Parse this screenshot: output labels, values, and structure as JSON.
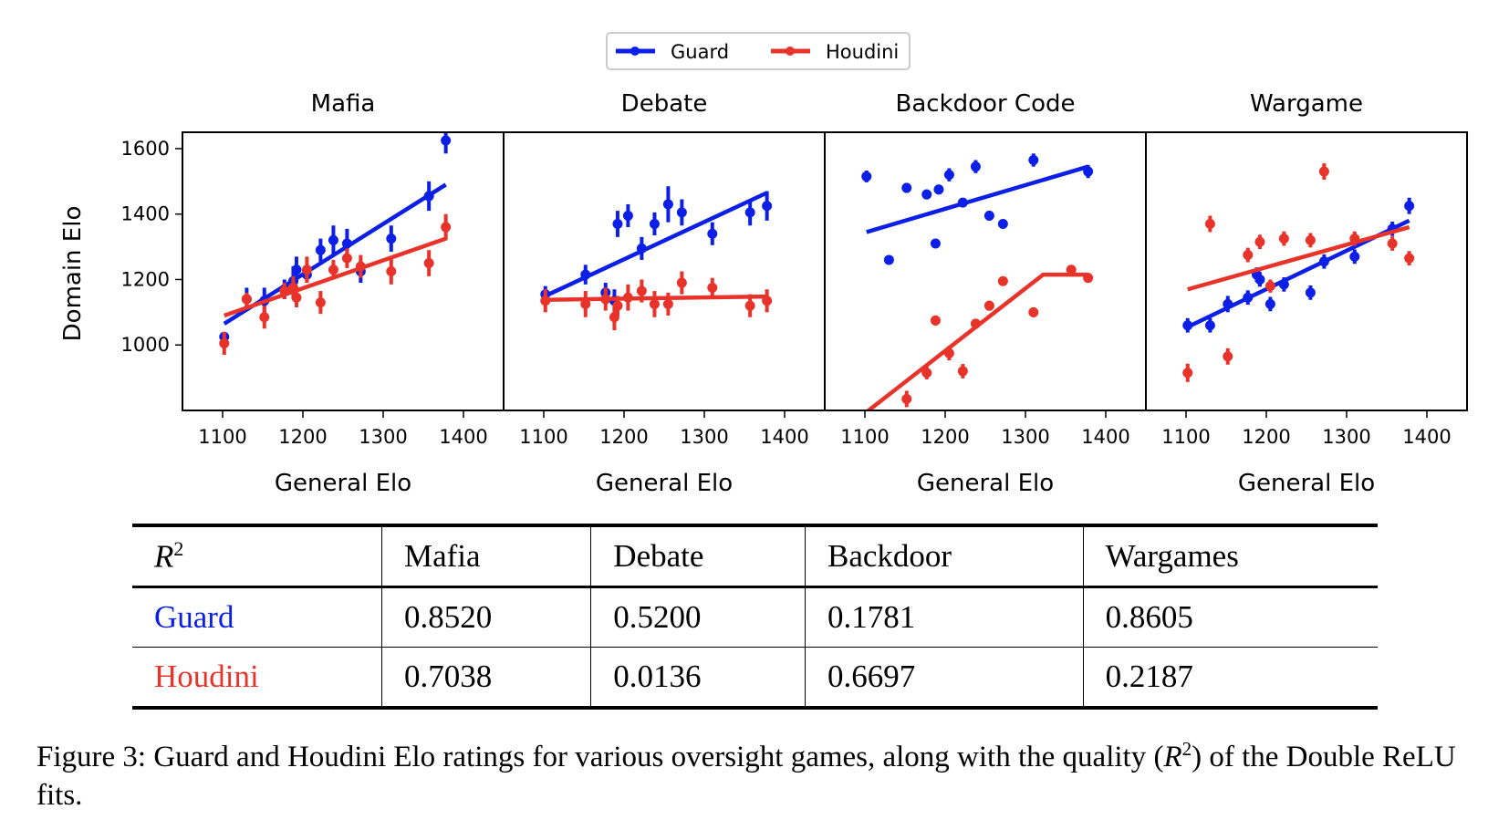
{
  "legend": {
    "guard_label": "Guard",
    "houdini_label": "Houdini"
  },
  "colors": {
    "guard": "#0b1fe6",
    "houdini": "#e8332a"
  },
  "axes": {
    "y_label": "Domain Elo",
    "x_label": "General Elo"
  },
  "chart_data": [
    {
      "type": "scatter",
      "title": "Mafia",
      "xlim": [
        1050,
        1450
      ],
      "ylim": [
        800,
        1650
      ],
      "xticks": [
        1100,
        1200,
        1300,
        1400
      ],
      "yticks": [
        1000,
        1200,
        1400,
        1600
      ],
      "series": [
        {
          "name": "Guard",
          "points": [
            [
              1102,
              1025,
              15
            ],
            [
              1130,
              1140,
              35
            ],
            [
              1152,
              1135,
              40
            ],
            [
              1177,
              1170,
              30
            ],
            [
              1188,
              1195,
              45
            ],
            [
              1192,
              1230,
              40
            ],
            [
              1205,
              1215,
              25
            ],
            [
              1222,
              1290,
              35
            ],
            [
              1238,
              1320,
              45
            ],
            [
              1255,
              1310,
              45
            ],
            [
              1272,
              1225,
              35
            ],
            [
              1310,
              1325,
              40
            ],
            [
              1357,
              1455,
              45
            ],
            [
              1378,
              1625,
              40
            ]
          ],
          "fit": [
            [
              1102,
              1065
            ],
            [
              1378,
              1490
            ]
          ]
        },
        {
          "name": "Houdini",
          "points": [
            [
              1102,
              1005,
              35
            ],
            [
              1130,
              1140,
              20
            ],
            [
              1152,
              1085,
              35
            ],
            [
              1177,
              1165,
              25
            ],
            [
              1188,
              1175,
              35
            ],
            [
              1192,
              1145,
              30
            ],
            [
              1205,
              1230,
              40
            ],
            [
              1222,
              1130,
              35
            ],
            [
              1238,
              1230,
              30
            ],
            [
              1255,
              1265,
              30
            ],
            [
              1272,
              1240,
              35
            ],
            [
              1310,
              1225,
              40
            ],
            [
              1357,
              1250,
              40
            ],
            [
              1378,
              1360,
              40
            ]
          ],
          "fit": [
            [
              1102,
              1090
            ],
            [
              1378,
              1325
            ]
          ]
        }
      ]
    },
    {
      "type": "scatter",
      "title": "Debate",
      "xlim": [
        1050,
        1450
      ],
      "ylim": [
        800,
        1650
      ],
      "xticks": [
        1100,
        1200,
        1300,
        1400
      ],
      "yticks": [
        1000,
        1200,
        1400,
        1600
      ],
      "series": [
        {
          "name": "Guard",
          "points": [
            [
              1102,
              1155,
              25
            ],
            [
              1152,
              1215,
              30
            ],
            [
              1177,
              1160,
              30
            ],
            [
              1188,
              1135,
              35
            ],
            [
              1192,
              1370,
              40
            ],
            [
              1205,
              1395,
              35
            ],
            [
              1222,
              1295,
              35
            ],
            [
              1238,
              1370,
              35
            ],
            [
              1255,
              1430,
              55
            ],
            [
              1272,
              1405,
              40
            ],
            [
              1310,
              1340,
              35
            ],
            [
              1357,
              1405,
              40
            ],
            [
              1378,
              1425,
              45
            ]
          ],
          "fit": [
            [
              1102,
              1150
            ],
            [
              1378,
              1465
            ]
          ]
        },
        {
          "name": "Houdini",
          "points": [
            [
              1102,
              1135,
              35
            ],
            [
              1152,
              1125,
              40
            ],
            [
              1177,
              1140,
              35
            ],
            [
              1188,
              1085,
              40
            ],
            [
              1192,
              1120,
              30
            ],
            [
              1205,
              1145,
              40
            ],
            [
              1222,
              1165,
              35
            ],
            [
              1238,
              1125,
              40
            ],
            [
              1255,
              1125,
              35
            ],
            [
              1272,
              1190,
              35
            ],
            [
              1310,
              1175,
              30
            ],
            [
              1357,
              1120,
              35
            ],
            [
              1378,
              1135,
              35
            ]
          ],
          "fit": [
            [
              1102,
              1138
            ],
            [
              1378,
              1148
            ]
          ]
        }
      ]
    },
    {
      "type": "scatter",
      "title": "Backdoor Code",
      "xlim": [
        1050,
        1450
      ],
      "ylim": [
        800,
        1650
      ],
      "xticks": [
        1100,
        1200,
        1300,
        1400
      ],
      "yticks": [
        1000,
        1200,
        1400,
        1600
      ],
      "series": [
        {
          "name": "Guard",
          "points": [
            [
              1102,
              1515,
              18
            ],
            [
              1130,
              1260,
              12
            ],
            [
              1152,
              1480,
              15
            ],
            [
              1177,
              1460,
              15
            ],
            [
              1188,
              1310,
              12
            ],
            [
              1192,
              1475,
              15
            ],
            [
              1205,
              1520,
              20
            ],
            [
              1222,
              1435,
              12
            ],
            [
              1238,
              1545,
              20
            ],
            [
              1255,
              1395,
              15
            ],
            [
              1272,
              1370,
              12
            ],
            [
              1310,
              1565,
              20
            ],
            [
              1378,
              1530,
              20
            ]
          ],
          "fit": [
            [
              1102,
              1345
            ],
            [
              1378,
              1545
            ]
          ]
        },
        {
          "name": "Houdini",
          "points": [
            [
              1152,
              835,
              25
            ],
            [
              1177,
              915,
              20
            ],
            [
              1188,
              1075,
              15
            ],
            [
              1205,
              975,
              22
            ],
            [
              1222,
              920,
              22
            ],
            [
              1238,
              1065,
              15
            ],
            [
              1255,
              1120,
              15
            ],
            [
              1272,
              1195,
              12
            ],
            [
              1310,
              1100,
              15
            ],
            [
              1357,
              1230,
              12
            ],
            [
              1378,
              1205,
              12
            ]
          ],
          "fit": [
            [
              1102,
              795
            ],
            [
              1322,
              1215
            ],
            [
              1378,
              1215
            ]
          ]
        }
      ]
    },
    {
      "type": "scatter",
      "title": "Wargame",
      "xlim": [
        1050,
        1450
      ],
      "ylim": [
        800,
        1650
      ],
      "xticks": [
        1100,
        1200,
        1300,
        1400
      ],
      "yticks": [
        1000,
        1200,
        1400,
        1600
      ],
      "series": [
        {
          "name": "Guard",
          "points": [
            [
              1102,
              1060,
              22
            ],
            [
              1130,
              1060,
              22
            ],
            [
              1152,
              1125,
              25
            ],
            [
              1177,
              1145,
              22
            ],
            [
              1188,
              1215,
              22
            ],
            [
              1192,
              1200,
              22
            ],
            [
              1205,
              1125,
              22
            ],
            [
              1222,
              1185,
              22
            ],
            [
              1255,
              1160,
              22
            ],
            [
              1272,
              1255,
              22
            ],
            [
              1310,
              1270,
              22
            ],
            [
              1357,
              1355,
              22
            ],
            [
              1378,
              1425,
              25
            ]
          ],
          "fit": [
            [
              1102,
              1055
            ],
            [
              1378,
              1380
            ]
          ]
        },
        {
          "name": "Houdini",
          "points": [
            [
              1102,
              915,
              28
            ],
            [
              1130,
              1370,
              25
            ],
            [
              1152,
              965,
              25
            ],
            [
              1177,
              1275,
              22
            ],
            [
              1192,
              1315,
              22
            ],
            [
              1205,
              1180,
              20
            ],
            [
              1222,
              1325,
              22
            ],
            [
              1255,
              1320,
              22
            ],
            [
              1272,
              1530,
              25
            ],
            [
              1310,
              1325,
              22
            ],
            [
              1357,
              1310,
              22
            ],
            [
              1378,
              1265,
              22
            ]
          ],
          "fit": [
            [
              1102,
              1170
            ],
            [
              1378,
              1360
            ]
          ]
        }
      ]
    }
  ],
  "table": {
    "header": {
      "label": "R",
      "sup": "2",
      "cols": [
        "Mafia",
        "Debate",
        "Backdoor",
        "Wargames"
      ]
    },
    "rows": [
      {
        "label": "Guard",
        "values": [
          "0.8520",
          "0.5200",
          "0.1781",
          "0.8605"
        ]
      },
      {
        "label": "Houdini",
        "values": [
          "0.7038",
          "0.0136",
          "0.6697",
          "0.2187"
        ]
      }
    ]
  },
  "caption": {
    "part1": "Figure 3: Guard and Houdini Elo ratings for various oversight games, along with the quality (",
    "math": "R",
    "sup": "2",
    "part2": ") of the Double ReLU fits."
  }
}
